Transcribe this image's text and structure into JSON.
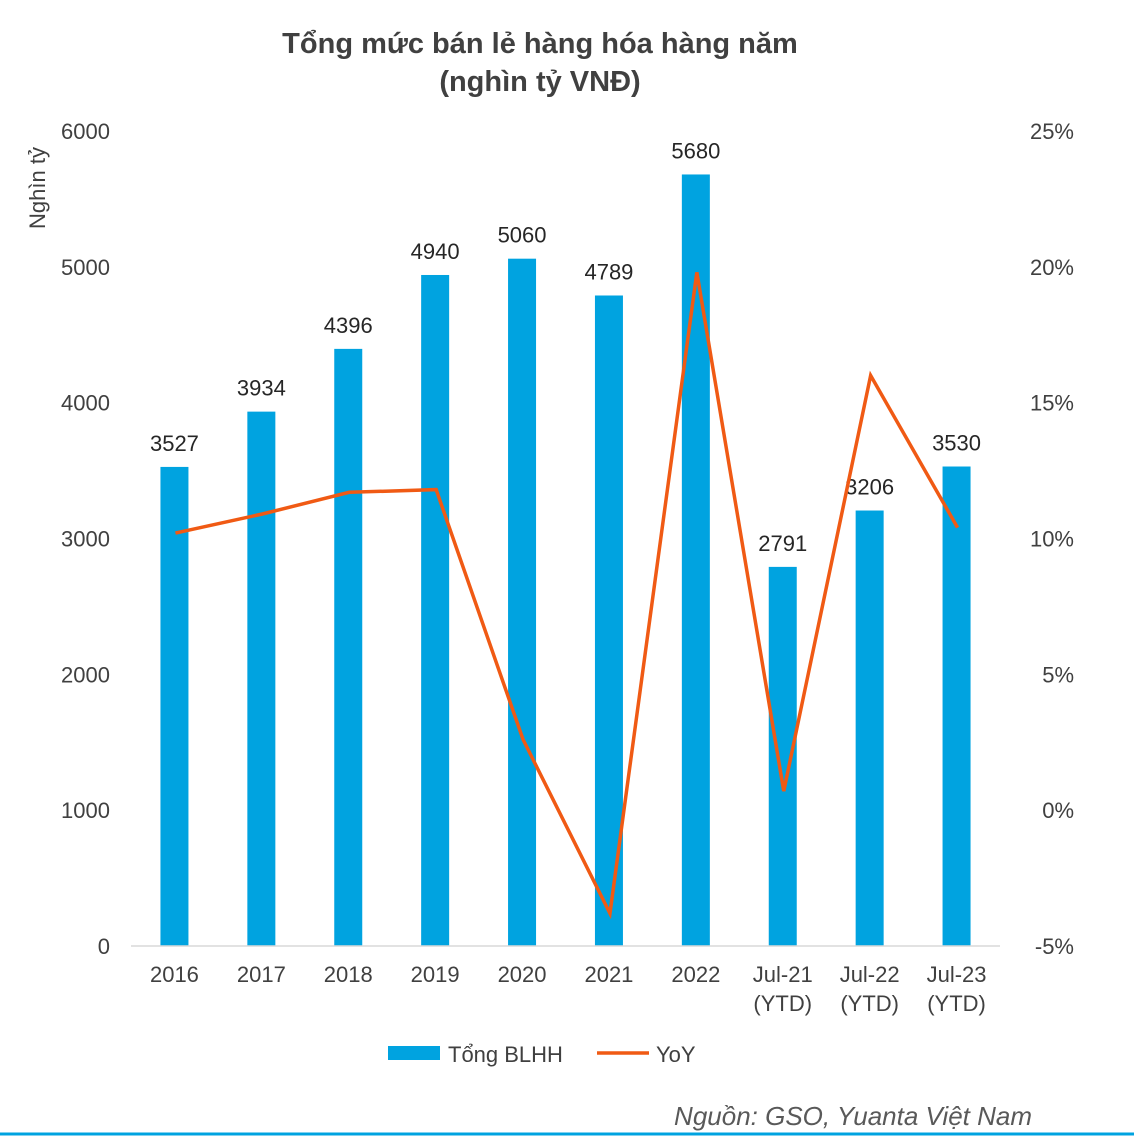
{
  "chart_data": {
    "type": "bar",
    "title_line1": "Tổng mức bán lẻ hàng hóa hàng năm",
    "title_line2": "(nghìn tỷ VNĐ)",
    "ylabel": "Nghìn tỷ",
    "categories": [
      [
        "2016"
      ],
      [
        "2017"
      ],
      [
        "2018"
      ],
      [
        "2019"
      ],
      [
        "2020"
      ],
      [
        "2021"
      ],
      [
        "2022"
      ],
      [
        "Jul-21",
        "(YTD)"
      ],
      [
        "Jul-22",
        "(YTD)"
      ],
      [
        "Jul-23",
        "(YTD)"
      ]
    ],
    "series": [
      {
        "name": "Tổng BLHH",
        "type": "bar",
        "axis": "left",
        "color": "#00a3e0",
        "values": [
          3527,
          3934,
          4396,
          4940,
          5060,
          4789,
          5680,
          2791,
          3206,
          3530
        ],
        "labels": [
          "3527",
          "3934",
          "4396",
          "4940",
          "5060",
          "4789",
          "5680",
          "2791",
          "3206",
          "3530"
        ]
      },
      {
        "name": "YoY",
        "type": "line",
        "axis": "right",
        "color": "#f05a14",
        "values": [
          10.2,
          10.9,
          11.7,
          11.8,
          2.6,
          -3.8,
          19.8,
          0.7,
          16.0,
          10.4
        ]
      }
    ],
    "y_left": {
      "min": 0,
      "max": 6000,
      "ticks": [
        0,
        1000,
        2000,
        3000,
        4000,
        5000,
        6000
      ],
      "tick_labels": [
        "0",
        "1000",
        "2000",
        "3000",
        "4000",
        "5000",
        "6000"
      ]
    },
    "y_right": {
      "min": -5,
      "max": 25,
      "ticks": [
        -5,
        0,
        5,
        10,
        15,
        20,
        25
      ],
      "tick_labels": [
        "-5%",
        "0%",
        "5%",
        "10%",
        "15%",
        "20%",
        "25%"
      ]
    },
    "legend_position": "bottom",
    "grid": false
  },
  "source": "Nguồn: GSO, Yuanta Việt Nam"
}
